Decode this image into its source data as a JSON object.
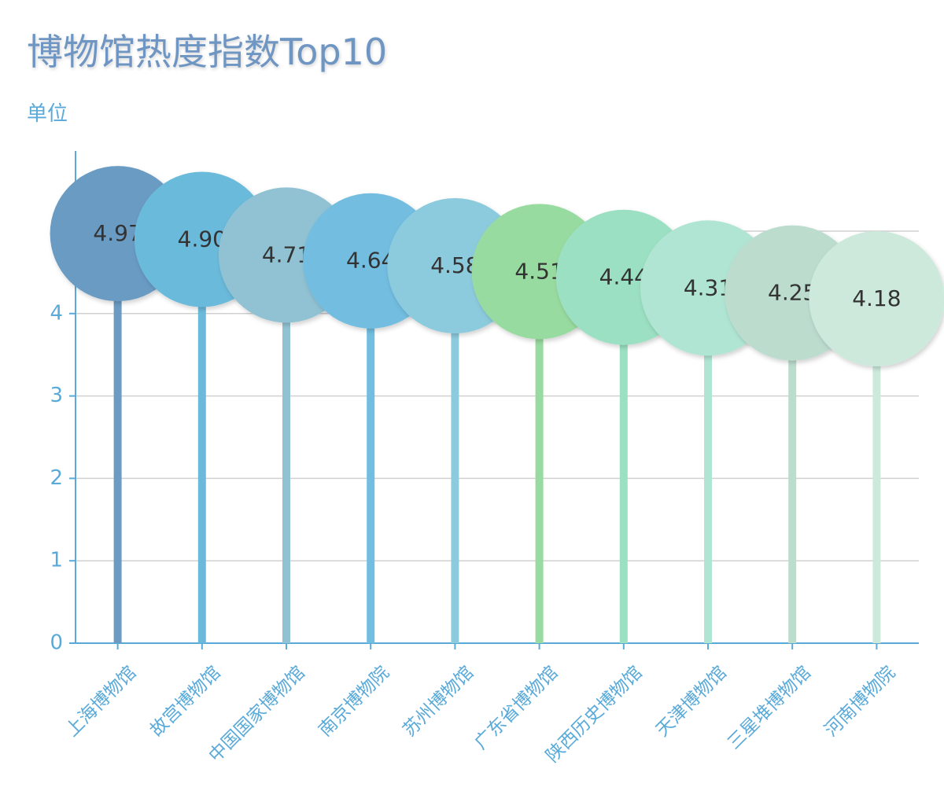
{
  "chart_data": {
    "type": "lollipop",
    "title": "博物馆热度指数Top10",
    "unit_label": "单位",
    "categories": [
      "上海博物馆",
      "故宫博物馆",
      "中国国家博物馆",
      "南京博物院",
      "苏州博物馆",
      "广东省博物馆",
      "陕西历史博物馆",
      "天津博物馆",
      "三星堆博物馆",
      "河南博物院"
    ],
    "values": [
      4.97,
      4.9,
      4.71,
      4.64,
      4.58,
      4.51,
      4.44,
      4.31,
      4.25,
      4.18
    ],
    "value_labels": [
      "4.97",
      "4.90",
      "4.71",
      "4.64",
      "4.58",
      "4.51",
      "4.44",
      "4.31",
      "4.25",
      "4.18"
    ],
    "colors": [
      "#6b9bc3",
      "#6bbadb",
      "#91c2d3",
      "#72bde0",
      "#8ccbdd",
      "#98dba0",
      "#9be0c2",
      "#b0e5d4",
      "#bcdcce",
      "#cce9dc"
    ],
    "yticks": [
      0,
      1,
      2,
      3,
      4,
      5
    ],
    "ytick_labels": [
      "0",
      "1",
      "2",
      "3",
      "4",
      ""
    ],
    "ylim": [
      0,
      5
    ],
    "grid": true,
    "axis_color": "#5aaad9",
    "grid_color": "#d0d0d0"
  }
}
